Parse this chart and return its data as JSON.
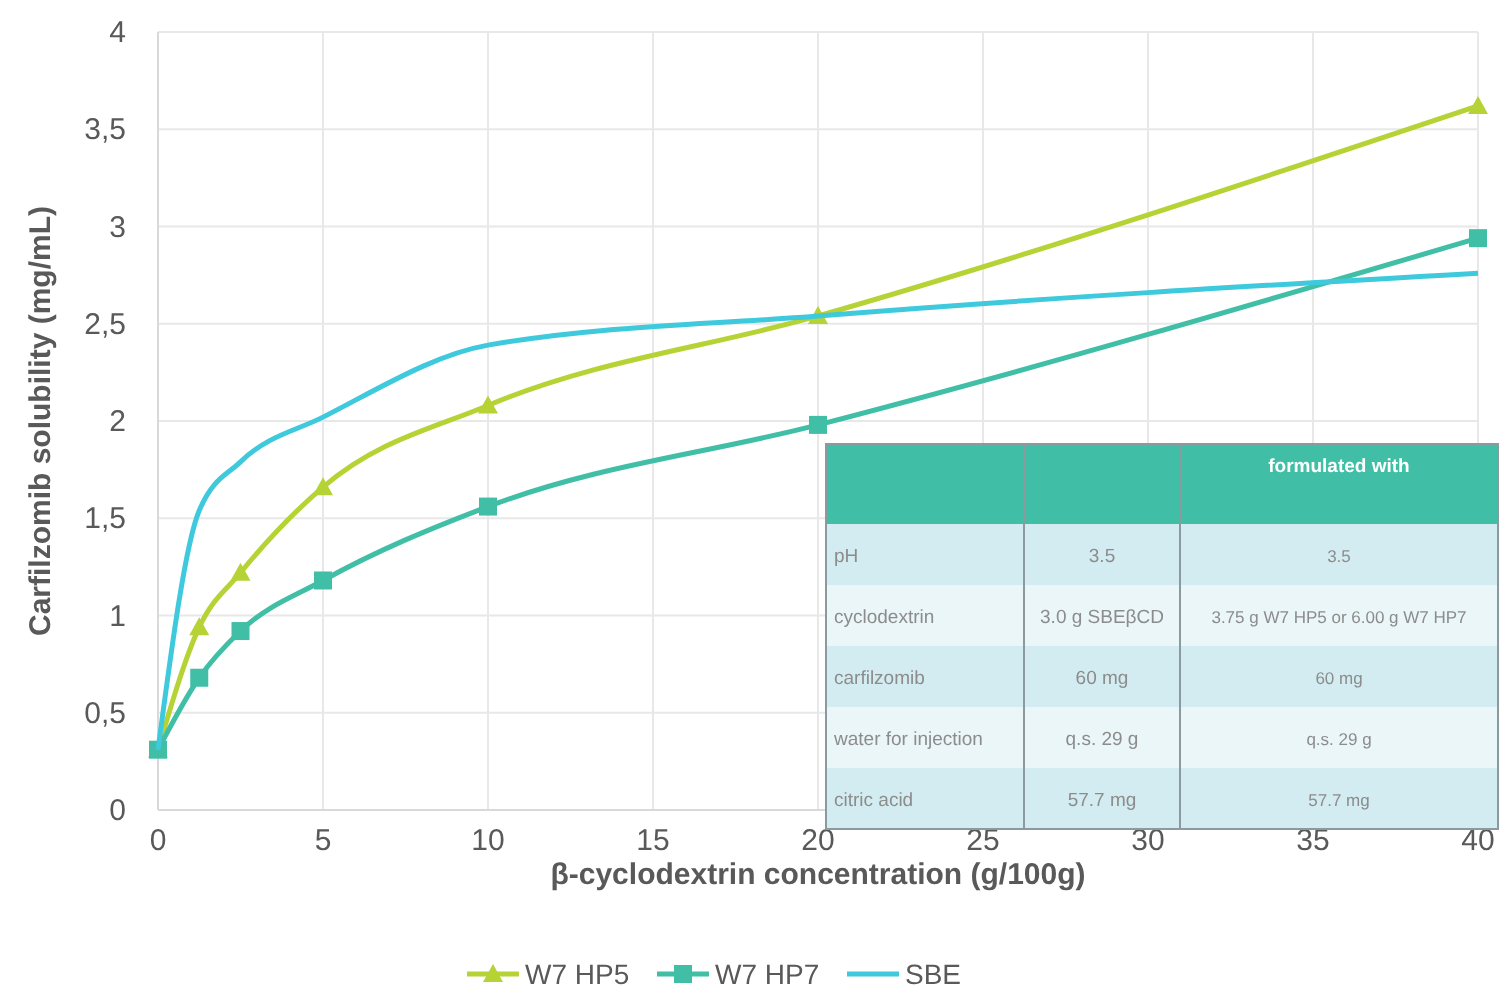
{
  "chart_data": {
    "type": "line",
    "xlabel": "β-cyclodextrin concentration (g/100g)",
    "ylabel": "Carfilzomib solubility (mg/mL)",
    "xlim": [
      0,
      40
    ],
    "xticks": [
      0,
      5,
      10,
      15,
      20,
      25,
      30,
      35,
      40
    ],
    "ylim": [
      0,
      4
    ],
    "yticks": [
      0,
      {
        "value": 0.5,
        "label": "0,5"
      },
      1,
      {
        "value": 1.5,
        "label": "1,5"
      },
      2,
      {
        "value": 2.5,
        "label": "2,5"
      },
      3,
      {
        "value": 3.5,
        "label": "3,5"
      },
      4
    ],
    "grid": true,
    "legend": "bottom",
    "series": [
      {
        "name": "W7 HP5",
        "color": "#b5d334",
        "marker": "triangle",
        "x": [
          0,
          1.25,
          2.5,
          5,
          10,
          20,
          40
        ],
        "values": [
          0.31,
          0.94,
          1.22,
          1.66,
          2.08,
          2.54,
          3.62
        ]
      },
      {
        "name": "W7 HP7",
        "color": "#40bfa6",
        "marker": "square",
        "x": [
          0,
          1.25,
          2.5,
          5,
          10,
          20,
          40
        ],
        "values": [
          0.31,
          0.68,
          0.92,
          1.18,
          1.56,
          1.98,
          2.94
        ]
      },
      {
        "name": "SBE",
        "color": "#3ec9dc",
        "marker": "none",
        "x": [
          0,
          1.25,
          2.5,
          5,
          10,
          20,
          40
        ],
        "values": [
          0.31,
          1.54,
          1.79,
          2.02,
          2.39,
          2.54,
          2.76
        ]
      }
    ],
    "annotations": [
      "formulated with",
      "pH",
      "3.5",
      "3.5",
      "cyclodextrin",
      "3.0 g SBEβCD",
      "3.75 g W7 HP5 or 6.00 g W7 HP7",
      "carfilzomib",
      "60 mg",
      "60 mg",
      "water for injection",
      "q.s. 29 g",
      "q.s. 29 g",
      "citric acid",
      "57.7 mg",
      "57.7 mg"
    ]
  }
}
